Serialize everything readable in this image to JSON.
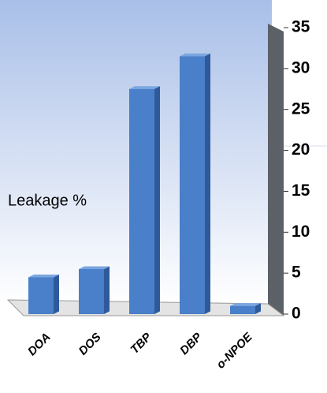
{
  "chart_data": {
    "type": "bar",
    "y_label": "Leakage %",
    "categories": [
      "DOA",
      "DOS",
      "TBP",
      "DBP",
      "o-NPOE"
    ],
    "values": [
      4.5,
      5.5,
      27.5,
      31.5,
      1
    ],
    "color": "#4a7fc9",
    "ylim": [
      0,
      35
    ],
    "yticks": [
      0,
      5,
      10,
      15,
      20,
      25,
      30,
      35
    ],
    "grid": false
  }
}
